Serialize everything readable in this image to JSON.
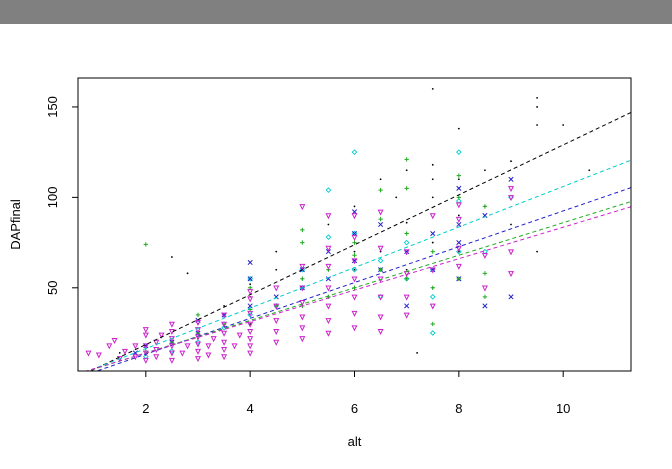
{
  "window": {
    "titlebar_color": "#808080"
  },
  "chart_data": {
    "type": "scatter",
    "xlabel": "alt",
    "ylabel": "DAPfinal",
    "xlim": [
      0.7,
      11.3
    ],
    "ylim": [
      4,
      166
    ],
    "xticks": [
      2,
      4,
      6,
      8,
      10
    ],
    "yticks": [
      50,
      100,
      150
    ],
    "grid": false,
    "series": [
      {
        "color": "#000000",
        "marker": "dot",
        "fit": {
          "intercept": -9.0,
          "slope": 13.8
        },
        "points": [
          [
            1.5,
            14
          ],
          [
            2.5,
            67
          ],
          [
            2.8,
            58
          ],
          [
            3,
            22
          ],
          [
            3,
            30
          ],
          [
            3.5,
            40
          ],
          [
            4,
            30
          ],
          [
            4,
            45
          ],
          [
            4,
            52
          ],
          [
            4.5,
            60
          ],
          [
            4.5,
            70
          ],
          [
            5,
            40
          ],
          [
            5,
            55
          ],
          [
            5.5,
            60
          ],
          [
            5.5,
            85
          ],
          [
            6,
            60
          ],
          [
            6,
            70
          ],
          [
            6,
            95
          ],
          [
            6.5,
            70
          ],
          [
            6.5,
            110
          ],
          [
            6.8,
            100
          ],
          [
            7,
            60
          ],
          [
            7,
            86
          ],
          [
            7,
            115
          ],
          [
            7.2,
            14
          ],
          [
            7.5,
            50
          ],
          [
            7.5,
            75
          ],
          [
            7.5,
            100
          ],
          [
            7.5,
            110
          ],
          [
            7.5,
            118
          ],
          [
            7.5,
            160
          ],
          [
            8,
            70
          ],
          [
            8,
            90
          ],
          [
            8,
            105
          ],
          [
            8,
            110
          ],
          [
            8,
            138
          ],
          [
            8.5,
            95
          ],
          [
            8.5,
            115
          ],
          [
            9,
            85
          ],
          [
            9,
            120
          ],
          [
            9.5,
            70
          ],
          [
            9.5,
            140
          ],
          [
            9.5,
            150
          ],
          [
            9.5,
            155
          ],
          [
            10,
            140
          ],
          [
            10.5,
            115
          ]
        ]
      },
      {
        "color": "#00cccc",
        "marker": "diamond",
        "fit": {
          "intercept": -6.0,
          "slope": 11.2
        },
        "points": [
          [
            2,
            12
          ],
          [
            2.5,
            15
          ],
          [
            3,
            20
          ],
          [
            3.5,
            28
          ],
          [
            4,
            35
          ],
          [
            4,
            55
          ],
          [
            4.5,
            40
          ],
          [
            5,
            50
          ],
          [
            5,
            60
          ],
          [
            5.5,
            78
          ],
          [
            5.5,
            104
          ],
          [
            6,
            60
          ],
          [
            6,
            80
          ],
          [
            6,
            125
          ],
          [
            6.5,
            45
          ],
          [
            6.5,
            65
          ],
          [
            7,
            55
          ],
          [
            7,
            75
          ],
          [
            7.5,
            25
          ],
          [
            7.5,
            45
          ],
          [
            7.5,
            60
          ],
          [
            8,
            70
          ],
          [
            8,
            98
          ],
          [
            8,
            125
          ],
          [
            8.5,
            70
          ],
          [
            9,
            100
          ]
        ]
      },
      {
        "color": "#2020cc",
        "marker": "x",
        "fit": {
          "intercept": -6.5,
          "slope": 9.9
        },
        "points": [
          [
            1.8,
            14
          ],
          [
            2,
            18
          ],
          [
            2.5,
            20
          ],
          [
            3,
            25
          ],
          [
            3,
            32
          ],
          [
            3.5,
            35
          ],
          [
            4,
            40
          ],
          [
            4,
            55
          ],
          [
            4,
            64
          ],
          [
            4.5,
            45
          ],
          [
            5,
            50
          ],
          [
            5,
            60
          ],
          [
            5.5,
            55
          ],
          [
            5.5,
            70
          ],
          [
            6,
            65
          ],
          [
            6,
            80
          ],
          [
            6,
            92
          ],
          [
            6.5,
            60
          ],
          [
            6.5,
            85
          ],
          [
            7,
            40
          ],
          [
            7,
            70
          ],
          [
            7.5,
            60
          ],
          [
            7.5,
            80
          ],
          [
            8,
            55
          ],
          [
            8,
            75
          ],
          [
            8,
            85
          ],
          [
            8,
            105
          ],
          [
            8.5,
            40
          ],
          [
            8.5,
            90
          ],
          [
            9,
            45
          ],
          [
            9,
            110
          ]
        ]
      },
      {
        "color": "#22aa22",
        "marker": "plus",
        "fit": {
          "intercept": -4.0,
          "slope": 9.0
        },
        "points": [
          [
            2,
            15
          ],
          [
            2,
            74
          ],
          [
            2.5,
            20
          ],
          [
            3,
            25
          ],
          [
            3,
            35
          ],
          [
            3.5,
            30
          ],
          [
            4,
            38
          ],
          [
            4,
            50
          ],
          [
            4.5,
            40
          ],
          [
            5,
            40
          ],
          [
            5,
            55
          ],
          [
            5,
            75
          ],
          [
            5,
            82
          ],
          [
            5.5,
            45
          ],
          [
            5.5,
            60
          ],
          [
            6,
            50
          ],
          [
            6,
            68
          ],
          [
            6,
            75
          ],
          [
            6.5,
            60
          ],
          [
            6.5,
            88
          ],
          [
            6.5,
            104
          ],
          [
            7,
            55
          ],
          [
            7,
            80
          ],
          [
            7,
            105
          ],
          [
            7,
            121
          ],
          [
            7.5,
            30
          ],
          [
            7.5,
            50
          ],
          [
            7.5,
            70
          ],
          [
            8,
            55
          ],
          [
            8,
            100
          ],
          [
            8,
            112
          ],
          [
            8.5,
            45
          ],
          [
            8.5,
            58
          ],
          [
            8.5,
            95
          ]
        ]
      },
      {
        "color": "#cc22cc",
        "marker": "triangle-down",
        "fit": {
          "intercept": -3.5,
          "slope": 8.7
        },
        "points": [
          [
            0.9,
            14
          ],
          [
            1.1,
            13
          ],
          [
            1.3,
            18
          ],
          [
            1.4,
            21
          ],
          [
            1.5,
            11
          ],
          [
            1.6,
            15
          ],
          [
            1.8,
            12
          ],
          [
            1.8,
            18
          ],
          [
            2,
            10
          ],
          [
            2,
            14
          ],
          [
            2,
            18
          ],
          [
            2,
            24
          ],
          [
            2,
            27
          ],
          [
            2.2,
            12
          ],
          [
            2.2,
            16
          ],
          [
            2.2,
            20
          ],
          [
            2.3,
            24
          ],
          [
            2.5,
            10
          ],
          [
            2.5,
            14
          ],
          [
            2.5,
            18
          ],
          [
            2.5,
            22
          ],
          [
            2.5,
            26
          ],
          [
            2.5,
            30
          ],
          [
            2.7,
            14
          ],
          [
            2.8,
            18
          ],
          [
            3,
            11
          ],
          [
            3,
            15
          ],
          [
            3,
            19
          ],
          [
            3,
            23
          ],
          [
            3,
            27
          ],
          [
            3,
            31
          ],
          [
            3.2,
            13
          ],
          [
            3.2,
            18
          ],
          [
            3.3,
            22
          ],
          [
            3.5,
            12
          ],
          [
            3.5,
            16
          ],
          [
            3.5,
            20
          ],
          [
            3.5,
            25
          ],
          [
            3.5,
            30
          ],
          [
            3.5,
            35
          ],
          [
            3.7,
            18
          ],
          [
            3.8,
            24
          ],
          [
            4,
            14
          ],
          [
            4,
            18
          ],
          [
            4,
            22
          ],
          [
            4,
            26
          ],
          [
            4,
            30
          ],
          [
            4,
            36
          ],
          [
            4,
            44
          ],
          [
            4,
            48
          ],
          [
            4.5,
            20
          ],
          [
            4.5,
            26
          ],
          [
            4.5,
            32
          ],
          [
            4.5,
            40
          ],
          [
            4.5,
            50
          ],
          [
            5,
            22
          ],
          [
            5,
            28
          ],
          [
            5,
            34
          ],
          [
            5,
            42
          ],
          [
            5,
            50
          ],
          [
            5,
            62
          ],
          [
            5,
            95
          ],
          [
            5.5,
            25
          ],
          [
            5.5,
            32
          ],
          [
            5.5,
            40
          ],
          [
            5.5,
            50
          ],
          [
            5.5,
            62
          ],
          [
            5.5,
            72
          ],
          [
            5.5,
            90
          ],
          [
            6,
            28
          ],
          [
            6,
            36
          ],
          [
            6,
            45
          ],
          [
            6,
            55
          ],
          [
            6,
            65
          ],
          [
            6,
            78
          ],
          [
            6,
            90
          ],
          [
            6.5,
            26
          ],
          [
            6.5,
            34
          ],
          [
            6.5,
            45
          ],
          [
            6.5,
            55
          ],
          [
            6.5,
            72
          ],
          [
            6.5,
            92
          ],
          [
            7,
            35
          ],
          [
            7,
            45
          ],
          [
            7,
            58
          ],
          [
            7,
            70
          ],
          [
            7.5,
            40
          ],
          [
            7.5,
            60
          ],
          [
            7.5,
            90
          ],
          [
            8,
            62
          ],
          [
            8,
            72
          ],
          [
            8,
            88
          ],
          [
            8,
            96
          ],
          [
            8.5,
            50
          ],
          [
            8.5,
            68
          ],
          [
            9,
            58
          ],
          [
            9,
            70
          ],
          [
            9,
            100
          ],
          [
            9,
            105
          ]
        ]
      }
    ]
  }
}
